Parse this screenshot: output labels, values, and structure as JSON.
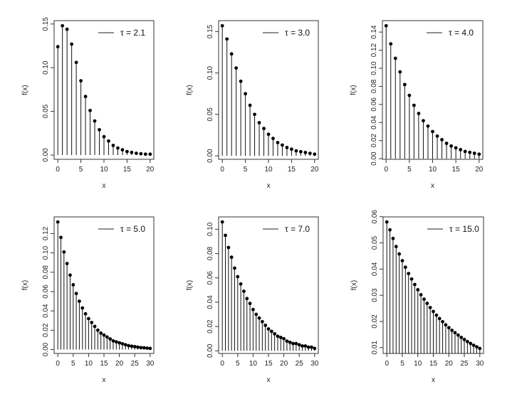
{
  "chart_data": [
    {
      "type": "line",
      "subtype": "stem",
      "legend": "τ = 2.1",
      "legend_placement": "top-right",
      "xlabel": "x",
      "ylabel": "f(x)",
      "grid": false,
      "xticks": [
        0,
        5,
        10,
        15,
        20
      ],
      "yticks": [
        "0.00",
        "0.05",
        "0.10",
        "0.15"
      ],
      "x": [
        0,
        1,
        2,
        3,
        4,
        5,
        6,
        7,
        8,
        9,
        10,
        11,
        12,
        13,
        14,
        15,
        16,
        17,
        18,
        19,
        20
      ],
      "values": [
        0.124,
        0.148,
        0.144,
        0.127,
        0.106,
        0.085,
        0.067,
        0.051,
        0.039,
        0.029,
        0.021,
        0.016,
        0.011,
        0.008,
        0.006,
        0.004,
        0.003,
        0.002,
        0.0015,
        0.001,
        0.001
      ]
    },
    {
      "type": "line",
      "subtype": "stem",
      "legend": "τ = 3.0",
      "legend_placement": "top-right",
      "xlabel": "x",
      "ylabel": "f(x)",
      "grid": false,
      "xticks": [
        0,
        5,
        10,
        15,
        20
      ],
      "yticks": [
        "0.00",
        "0.05",
        "0.10",
        "0.15"
      ],
      "x": [
        0,
        1,
        2,
        3,
        4,
        5,
        6,
        7,
        8,
        9,
        10,
        11,
        12,
        13,
        14,
        15,
        16,
        17,
        18,
        19,
        20
      ],
      "values": [
        0.157,
        0.141,
        0.123,
        0.106,
        0.09,
        0.075,
        0.061,
        0.05,
        0.04,
        0.033,
        0.026,
        0.021,
        0.016,
        0.013,
        0.01,
        0.008,
        0.006,
        0.005,
        0.004,
        0.003,
        0.002
      ]
    },
    {
      "type": "line",
      "subtype": "stem",
      "legend": "τ = 4.0",
      "legend_placement": "top-right",
      "xlabel": "x",
      "ylabel": "f(x)",
      "grid": false,
      "xticks": [
        0,
        5,
        10,
        15,
        20
      ],
      "yticks": [
        "0.00",
        "0.02",
        "0.04",
        "0.06",
        "0.08",
        "0.10",
        "0.12",
        "0.14"
      ],
      "x": [
        0,
        1,
        2,
        3,
        4,
        5,
        6,
        7,
        8,
        9,
        10,
        11,
        12,
        13,
        14,
        15,
        16,
        17,
        18,
        19,
        20
      ],
      "values": [
        0.147,
        0.127,
        0.111,
        0.096,
        0.082,
        0.07,
        0.059,
        0.05,
        0.042,
        0.036,
        0.03,
        0.025,
        0.021,
        0.017,
        0.014,
        0.012,
        0.01,
        0.008,
        0.007,
        0.006,
        0.005
      ]
    },
    {
      "type": "line",
      "subtype": "stem",
      "legend": "τ = 5.0",
      "legend_placement": "top-right",
      "xlabel": "x",
      "ylabel": "f(x)",
      "grid": false,
      "xticks": [
        0,
        5,
        10,
        15,
        20,
        25,
        30
      ],
      "yticks": [
        "0.00",
        "0.02",
        "0.04",
        "0.06",
        "0.08",
        "0.10",
        "0.12"
      ],
      "x": [
        0,
        1,
        2,
        3,
        4,
        5,
        6,
        7,
        8,
        9,
        10,
        11,
        12,
        13,
        14,
        15,
        16,
        17,
        18,
        19,
        20,
        21,
        22,
        23,
        24,
        25,
        26,
        27,
        28,
        29,
        30
      ],
      "values": [
        0.132,
        0.116,
        0.101,
        0.089,
        0.077,
        0.067,
        0.058,
        0.05,
        0.043,
        0.037,
        0.032,
        0.028,
        0.024,
        0.02,
        0.017,
        0.015,
        0.013,
        0.011,
        0.009,
        0.008,
        0.007,
        0.006,
        0.005,
        0.004,
        0.0035,
        0.003,
        0.0025,
        0.002,
        0.0018,
        0.0015,
        0.0012
      ]
    },
    {
      "type": "line",
      "subtype": "stem",
      "legend": "τ = 7.0",
      "legend_placement": "top-right",
      "xlabel": "x",
      "ylabel": "f(x)",
      "grid": false,
      "xticks": [
        0,
        5,
        10,
        15,
        20,
        25,
        30
      ],
      "yticks": [
        "0.00",
        "0.02",
        "0.04",
        "0.06",
        "0.08",
        "0.10"
      ],
      "x": [
        0,
        1,
        2,
        3,
        4,
        5,
        6,
        7,
        8,
        9,
        10,
        11,
        12,
        13,
        14,
        15,
        16,
        17,
        18,
        19,
        20,
        21,
        22,
        23,
        24,
        25,
        26,
        27,
        28,
        29,
        30
      ],
      "values": [
        0.106,
        0.095,
        0.085,
        0.077,
        0.068,
        0.061,
        0.055,
        0.049,
        0.043,
        0.039,
        0.034,
        0.03,
        0.027,
        0.024,
        0.021,
        0.018,
        0.016,
        0.014,
        0.012,
        0.011,
        0.01,
        0.008,
        0.007,
        0.006,
        0.006,
        0.005,
        0.004,
        0.004,
        0.003,
        0.003,
        0.002
      ]
    },
    {
      "type": "line",
      "subtype": "stem",
      "legend": "τ = 15.0",
      "legend_placement": "top-right",
      "xlabel": "x",
      "ylabel": "f(x)",
      "grid": false,
      "xticks": [
        0,
        5,
        10,
        15,
        20,
        25,
        30
      ],
      "yticks": [
        "0.01",
        "0.02",
        "0.03",
        "0.04",
        "0.05",
        "0.06"
      ],
      "x": [
        0,
        1,
        2,
        3,
        4,
        5,
        6,
        7,
        8,
        9,
        10,
        11,
        12,
        13,
        14,
        15,
        16,
        17,
        18,
        19,
        20,
        21,
        22,
        23,
        24,
        25,
        26,
        27,
        28,
        29,
        30
      ],
      "values": [
        0.058,
        0.055,
        0.0517,
        0.0486,
        0.0458,
        0.0432,
        0.0407,
        0.0383,
        0.0362,
        0.0341,
        0.0321,
        0.0302,
        0.0285,
        0.0269,
        0.0253,
        0.0238,
        0.0224,
        0.0211,
        0.0199,
        0.0187,
        0.0176,
        0.0166,
        0.0157,
        0.0148,
        0.0139,
        0.0131,
        0.0123,
        0.0116,
        0.0109,
        0.0103,
        0.0097
      ]
    }
  ]
}
